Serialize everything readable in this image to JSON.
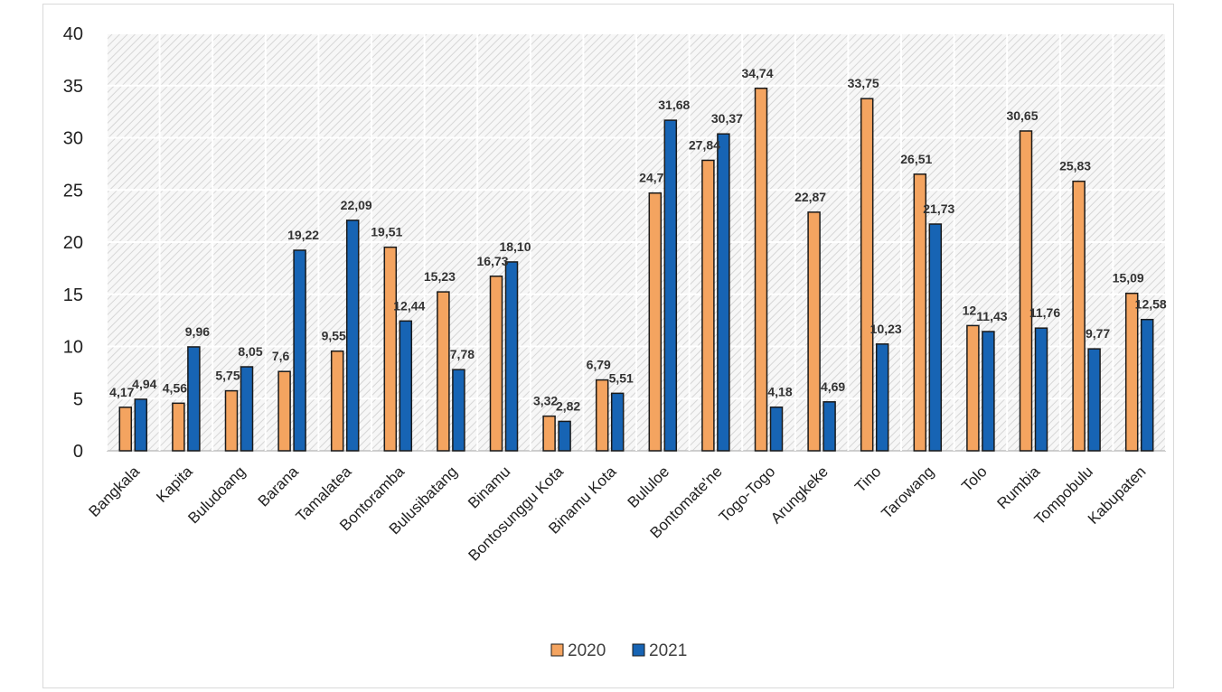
{
  "chart_data": {
    "type": "bar",
    "categories": [
      "Bangkala",
      "Kapita",
      "Buludoang",
      "Barana",
      "Tamalatea",
      "Bontoramba",
      "Bulusibatang",
      "Binamu",
      "Bontosunggu Kota",
      "Binamu Kota",
      "Bululoe",
      "Bontomate'ne",
      "Togo-Togo",
      "Arungkeke",
      "Tino",
      "Tarowang",
      "Tolo",
      "Rumbia",
      "Tompobulu",
      "Kabupaten"
    ],
    "series": [
      {
        "name": "2020",
        "color": "#f4a460",
        "values": [
          4.17,
          4.56,
          5.75,
          7.6,
          9.55,
          19.51,
          15.23,
          16.73,
          3.32,
          6.79,
          24.7,
          27.84,
          34.74,
          22.87,
          33.75,
          26.51,
          12,
          30.65,
          25.83,
          15.09
        ],
        "labels": [
          "4,17",
          "4,56",
          "5,75",
          "7,6",
          "9,55",
          "19,51",
          "15,23",
          "16,73",
          "3,32",
          "6,79",
          "24,7",
          "27,84",
          "34,74",
          "22,87",
          "33,75",
          "26,51",
          "12",
          "30,65",
          "25,83",
          "15,09"
        ]
      },
      {
        "name": "2021",
        "color": "#1764b4",
        "values": [
          4.94,
          9.96,
          8.05,
          19.22,
          22.09,
          12.44,
          7.78,
          18.1,
          2.82,
          5.51,
          31.68,
          30.37,
          4.18,
          4.69,
          10.23,
          21.73,
          11.43,
          11.76,
          9.77,
          12.58
        ],
        "labels": [
          "4,94",
          "9,96",
          "8,05",
          "19,22",
          "22,09",
          "12,44",
          "7,78",
          "18,10",
          "2,82",
          "5,51",
          "31,68",
          "30,37",
          "4,18",
          "4,69",
          "10,23",
          "21,73",
          "11,43",
          "11,76",
          "9,77",
          "12,58"
        ]
      }
    ],
    "yticks": [
      "0",
      "5",
      "10",
      "15",
      "20",
      "25",
      "30",
      "35",
      "40"
    ],
    "ylim": [
      0,
      40
    ],
    "title": "",
    "xlabel": "",
    "ylabel": "",
    "grid": true,
    "legend": "bottom-center"
  }
}
